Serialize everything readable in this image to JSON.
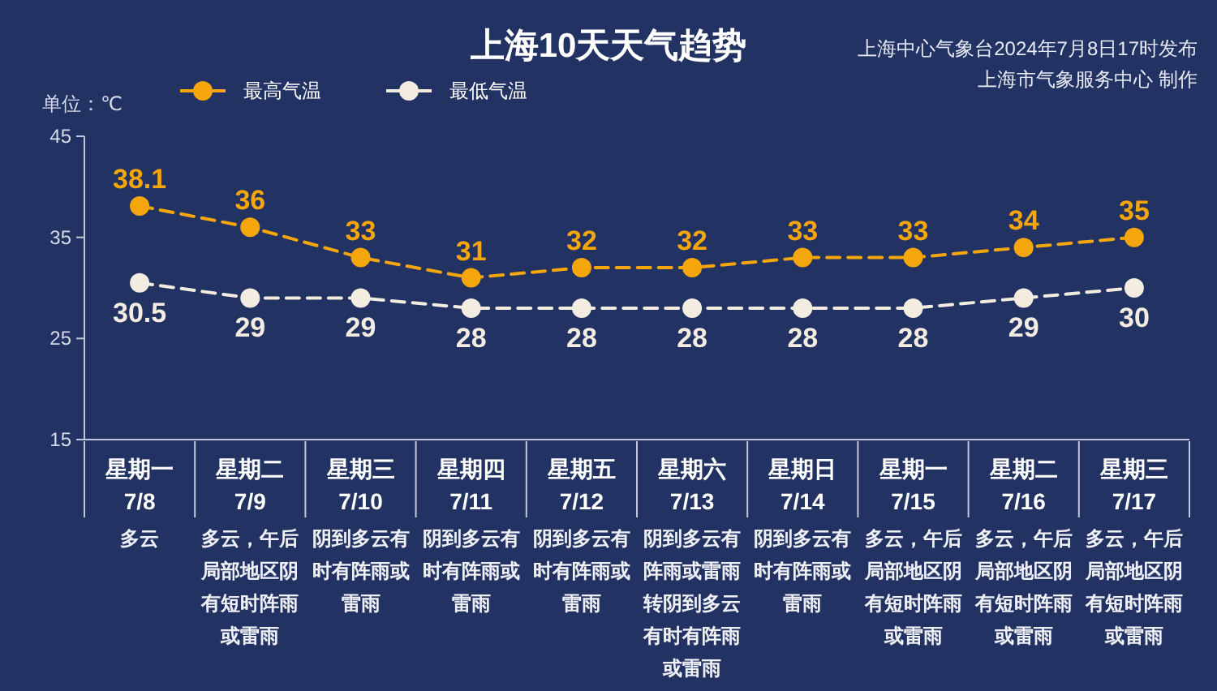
{
  "chart_data": {
    "type": "line",
    "title": "上海10天天气趋势",
    "ylabel": "单位：℃",
    "categories": [
      "星期一\n7/8",
      "星期二\n7/9",
      "星期三\n7/10",
      "星期四\n7/11",
      "星期五\n7/12",
      "星期六\n7/13",
      "星期日\n7/14",
      "星期一\n7/15",
      "星期二\n7/16",
      "星期三\n7/17"
    ],
    "series": [
      {
        "name": "最高气温",
        "color": "#f5a60c",
        "values": [
          38.1,
          36,
          33,
          31,
          32,
          32,
          33,
          33,
          34,
          35
        ]
      },
      {
        "name": "最低气温",
        "color": "#f3ece0",
        "values": [
          30.5,
          29,
          29,
          28,
          28,
          28,
          28,
          28,
          29,
          30
        ]
      }
    ],
    "ylim": [
      15,
      45
    ],
    "yticks": [
      15,
      25,
      35,
      45
    ],
    "data_labels": true,
    "legend": "top left",
    "marker": "circle",
    "line_style": "dashed",
    "annotations": [
      "上海中心气象台2024年7月8日17时发布",
      "上海市气象服务中心 制作",
      "多云",
      "多云，午后局部地区阴有短时阵雨或雷雨",
      "阴到多云有时有阵雨或雷雨",
      "阴到多云有时有阵雨或雷雨",
      "阴到多云有时有阵雨或雷雨",
      "阴到多云有阵雨或雷雨转阴到多云有时有阵雨或雷雨",
      "阴到多云有时有阵雨或雷雨",
      "多云，午后局部地区阴有短时阵雨或雷雨",
      "多云，午后局部地区阴有短时阵雨或雷雨",
      "多云，午后局部地区阴有短时阵雨或雷雨"
    ]
  }
}
